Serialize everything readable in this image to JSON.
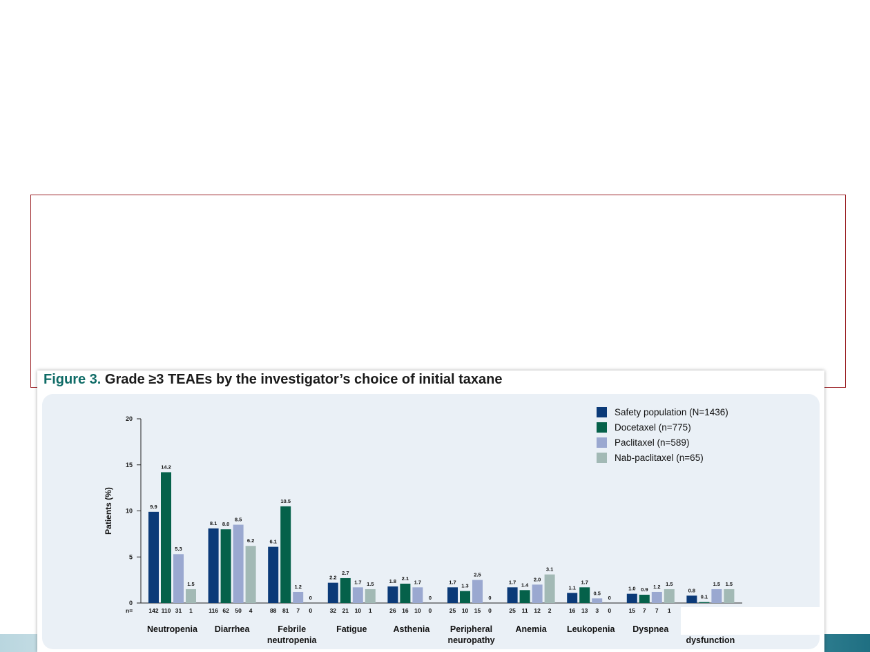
{
  "figure": {
    "label": "Figure 3.",
    "title": "Grade ≥3 TEAEs by the investigator’s choice of initial taxane"
  },
  "colors": {
    "safety": "#0b3a78",
    "docetaxel": "#05614a",
    "paclitaxel": "#9aa8d0",
    "nab": "#a2b9b5"
  },
  "chart_data": {
    "type": "bar",
    "ylabel": "Patients (%)",
    "ylim": [
      0,
      20
    ],
    "yticks": [
      0,
      5,
      10,
      15,
      20
    ],
    "n_prefix": "n=",
    "legend_position": "top-right",
    "categories": [
      [
        "Neutropenia"
      ],
      [
        "Diarrhea"
      ],
      [
        "Febrile",
        "neutropenia"
      ],
      [
        "Fatigue"
      ],
      [
        "Asthenia"
      ],
      [
        "Peripheral",
        "neuropathy"
      ],
      [
        "Anemia"
      ],
      [
        "Leukopenia"
      ],
      [
        "Dyspnea"
      ],
      [
        "dysfunction"
      ]
    ],
    "series": [
      {
        "name": "Safety population (N=1436)",
        "values": [
          9.9,
          8.1,
          6.1,
          2.2,
          1.8,
          1.7,
          1.7,
          1.1,
          1.0,
          0.8
        ],
        "labels": [
          "9.9",
          "8.1",
          "6.1",
          "2.2",
          "1.8",
          "1.7",
          "1.7",
          "1.1",
          "1.0",
          "0.8"
        ],
        "n": [
          "142",
          "116",
          "88",
          "32",
          "26",
          "25",
          "25",
          "16",
          "15",
          ""
        ]
      },
      {
        "name": "Docetaxel (n=775)",
        "values": [
          14.2,
          8.0,
          10.5,
          2.7,
          2.1,
          1.3,
          1.4,
          1.7,
          0.9,
          0.1
        ],
        "labels": [
          "14.2",
          "8.0",
          "10.5",
          "2.7",
          "2.1",
          "1.3",
          "1.4",
          "1.7",
          "0.9",
          "0.1"
        ],
        "n": [
          "110",
          "62",
          "81",
          "21",
          "16",
          "10",
          "11",
          "13",
          "7",
          ""
        ]
      },
      {
        "name": "Paclitaxel (n=589)",
        "values": [
          5.3,
          8.5,
          1.2,
          1.7,
          1.7,
          2.5,
          2.0,
          0.5,
          1.2,
          1.5
        ],
        "labels": [
          "5.3",
          "8.5",
          "1.2",
          "1.7",
          "1.7",
          "2.5",
          "2.0",
          "0.5",
          "1.2",
          "1.5"
        ],
        "n": [
          "31",
          "50",
          "7",
          "10",
          "10",
          "15",
          "12",
          "3",
          "7",
          ""
        ]
      },
      {
        "name": "Nab-paclitaxel (n=65)",
        "values": [
          1.5,
          6.2,
          0,
          1.5,
          0,
          0,
          3.1,
          0,
          1.5,
          1.5
        ],
        "labels": [
          "1.5",
          "6.2",
          "0",
          "1.5",
          "0",
          "0",
          "3.1",
          "0",
          "1.5",
          "1.5"
        ],
        "n": [
          "1",
          "4",
          "0",
          "1",
          "0",
          "0",
          "2",
          "0",
          "1",
          ""
        ]
      }
    ]
  }
}
